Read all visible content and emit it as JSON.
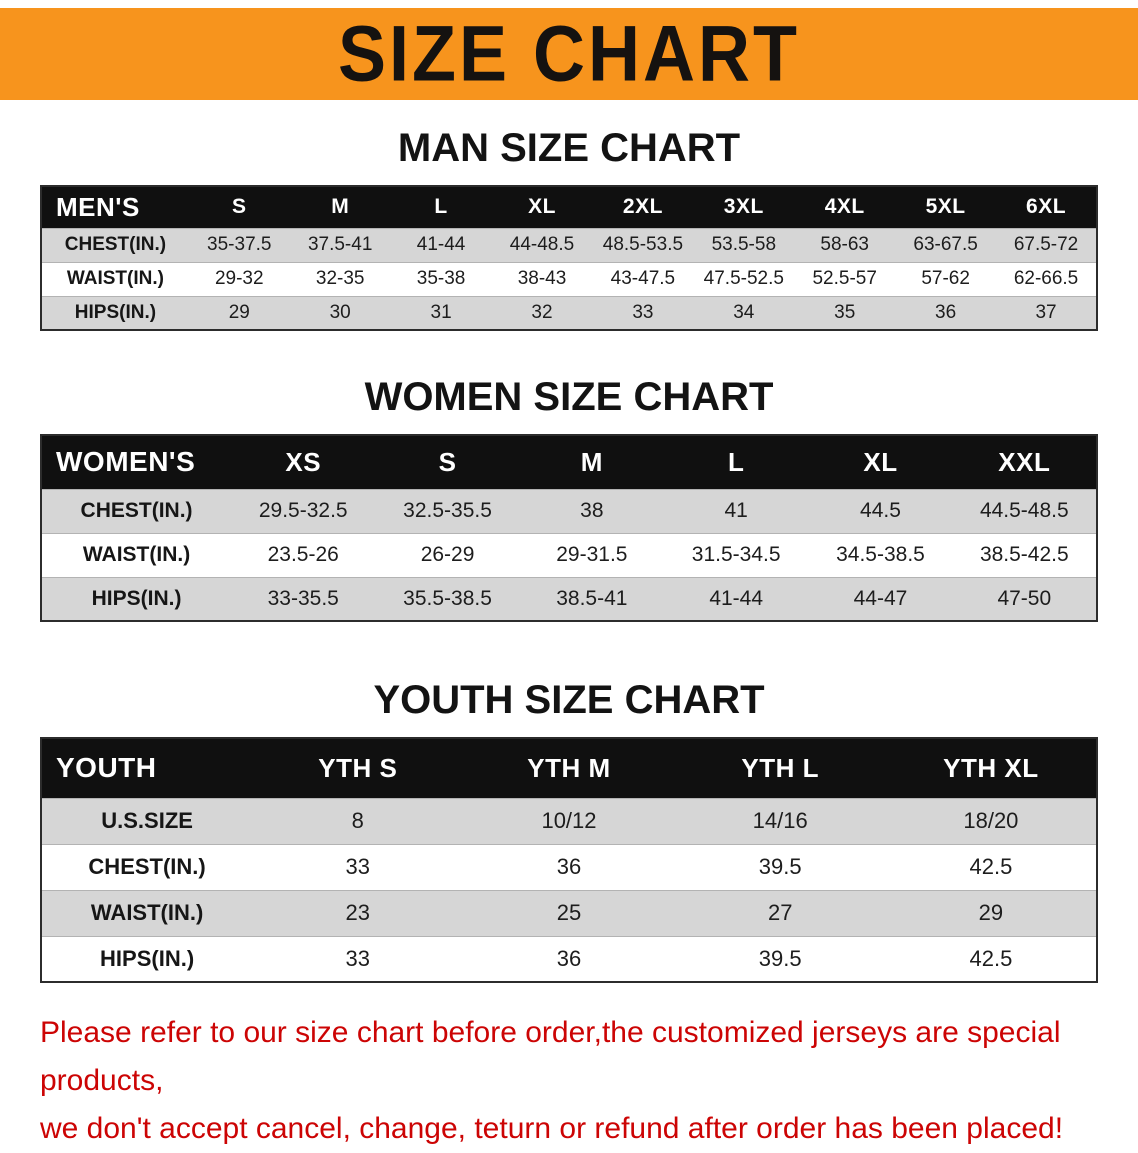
{
  "banner": {
    "title": "SIZE CHART"
  },
  "colors": {
    "banner_bg": "#F7941D",
    "table_header_bg": "#101010",
    "row_alt_gray": "#d6d6d6",
    "disclaimer_red": "#cc0404"
  },
  "men": {
    "heading": "MAN SIZE CHART",
    "header": [
      "MEN'S",
      "S",
      "M",
      "L",
      "XL",
      "2XL",
      "3XL",
      "4XL",
      "5XL",
      "6XL"
    ],
    "rows": [
      [
        "CHEST(IN.)",
        "35-37.5",
        "37.5-41",
        "41-44",
        "44-48.5",
        "48.5-53.5",
        "53.5-58",
        "58-63",
        "63-67.5",
        "67.5-72"
      ],
      [
        "WAIST(IN.)",
        "29-32",
        "32-35",
        "35-38",
        "38-43",
        "43-47.5",
        "47.5-52.5",
        "52.5-57",
        "57-62",
        "62-66.5"
      ],
      [
        "HIPS(IN.)",
        "29",
        "30",
        "31",
        "32",
        "33",
        "34",
        "35",
        "36",
        "37"
      ]
    ]
  },
  "women": {
    "heading": "WOMEN SIZE CHART",
    "header": [
      "WOMEN'S",
      "XS",
      "S",
      "M",
      "L",
      "XL",
      "XXL"
    ],
    "rows": [
      [
        "CHEST(IN.)",
        "29.5-32.5",
        "32.5-35.5",
        "38",
        "41",
        "44.5",
        "44.5-48.5"
      ],
      [
        "WAIST(IN.)",
        "23.5-26",
        "26-29",
        "29-31.5",
        "31.5-34.5",
        "34.5-38.5",
        "38.5-42.5"
      ],
      [
        "HIPS(IN.)",
        "33-35.5",
        "35.5-38.5",
        "38.5-41",
        "41-44",
        "44-47",
        "47-50"
      ]
    ]
  },
  "youth": {
    "heading": "YOUTH SIZE CHART",
    "header": [
      "YOUTH",
      "YTH S",
      "YTH M",
      "YTH L",
      "YTH XL"
    ],
    "rows": [
      [
        "U.S.SIZE",
        "8",
        "10/12",
        "14/16",
        "18/20"
      ],
      [
        "CHEST(IN.)",
        "33",
        "36",
        "39.5",
        "42.5"
      ],
      [
        "WAIST(IN.)",
        "23",
        "25",
        "27",
        "29"
      ],
      [
        "HIPS(IN.)",
        "33",
        "36",
        "39.5",
        "42.5"
      ]
    ]
  },
  "disclaimer": {
    "line1": "Please refer to our size chart before order,the customized jerseys are special products,",
    "line2": "we don't accept cancel, change, teturn or refund after order has been placed!"
  }
}
